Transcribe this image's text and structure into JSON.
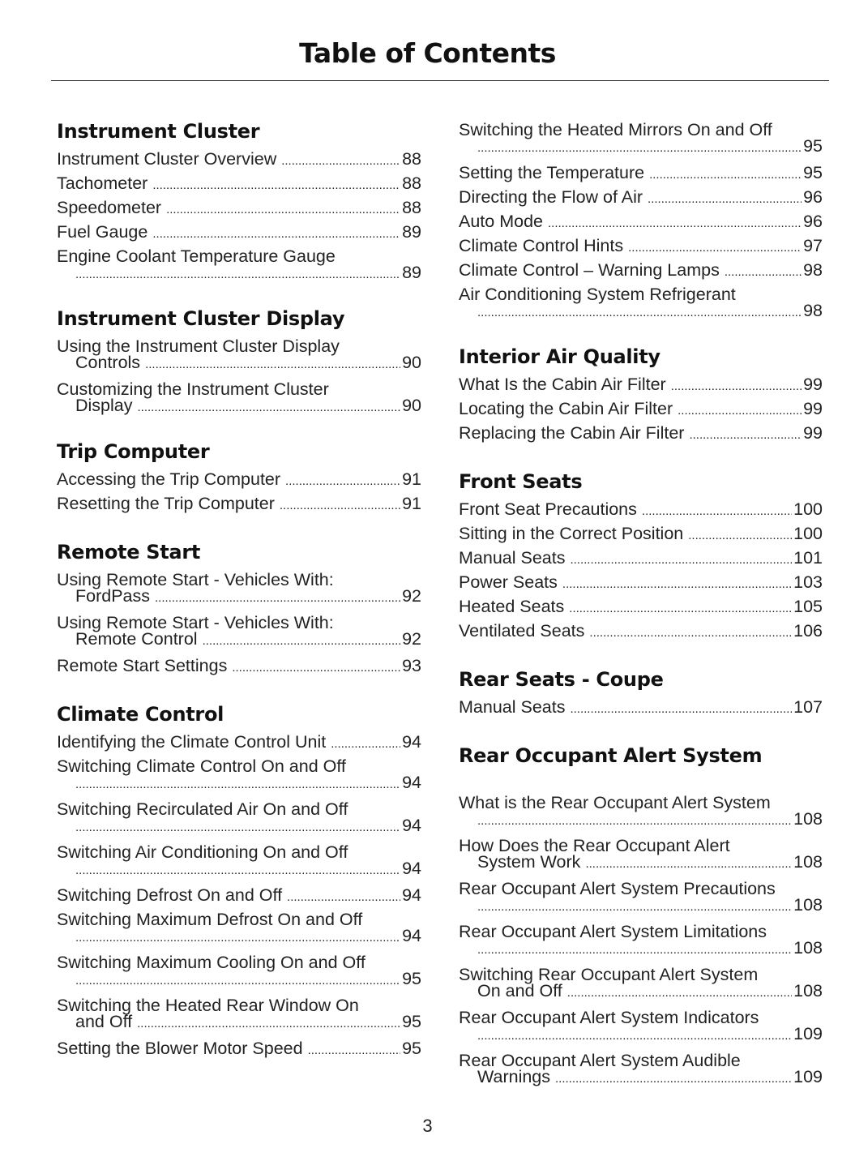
{
  "header": {
    "title": "Table of Contents"
  },
  "footer": {
    "page_number": "3"
  },
  "columns": [
    [
      {
        "heading": "Instrument Cluster",
        "entries": [
          {
            "text": "Instrument Cluster Overview",
            "page": "88"
          },
          {
            "text": "Tachometer",
            "page": "88"
          },
          {
            "text": "Speedometer",
            "page": "88"
          },
          {
            "text": "Fuel Gauge",
            "page": "89"
          },
          {
            "text": "Engine Coolant Temperature Gauge",
            "cont": "",
            "page": "89"
          }
        ]
      },
      {
        "heading": "Instrument Cluster Display",
        "entries": [
          {
            "text": "Using the Instrument Cluster Display",
            "cont": "Controls",
            "page": "90"
          },
          {
            "text": "Customizing the Instrument Cluster",
            "cont": "Display",
            "page": "90"
          }
        ]
      },
      {
        "heading": "Trip Computer",
        "entries": [
          {
            "text": "Accessing the Trip Computer",
            "page": "91"
          },
          {
            "text": "Resetting the Trip Computer",
            "page": "91"
          }
        ]
      },
      {
        "heading": "Remote Start",
        "entries": [
          {
            "text": "Using Remote Start - Vehicles With:",
            "cont": "FordPass",
            "page": "92"
          },
          {
            "text": "Using Remote Start - Vehicles With:",
            "cont": "Remote Control",
            "page": "92"
          },
          {
            "text": "Remote Start Settings",
            "page": "93"
          }
        ]
      },
      {
        "heading": "Climate Control",
        "entries": [
          {
            "text": "Identifying the Climate Control Unit",
            "page": "94"
          },
          {
            "text": "Switching Climate Control On and Off",
            "cont": "",
            "page": "94"
          },
          {
            "text": "Switching Recirculated Air On and Off",
            "cont": "",
            "page": "94"
          },
          {
            "text": "Switching Air Conditioning On and Off",
            "cont": "",
            "page": "94"
          },
          {
            "text": "Switching Defrost On and Off",
            "page": "94"
          },
          {
            "text": "Switching Maximum Defrost On and Off",
            "cont": "",
            "page": "94"
          },
          {
            "text": "Switching Maximum Cooling On and Off",
            "cont": "",
            "page": "95"
          },
          {
            "text": "Switching the Heated Rear Window On",
            "cont": "and Off",
            "page": "95"
          },
          {
            "text": "Setting the Blower Motor Speed",
            "page": "95"
          }
        ]
      }
    ],
    [
      {
        "heading": "",
        "entries": [
          {
            "text": "Switching the Heated Mirrors On and Off",
            "cont": "",
            "page": "95"
          },
          {
            "text": "Setting the Temperature",
            "page": "95"
          },
          {
            "text": "Directing the Flow of Air",
            "page": "96"
          },
          {
            "text": "Auto Mode",
            "page": "96"
          },
          {
            "text": "Climate Control Hints",
            "page": "97"
          },
          {
            "text": "Climate Control – Warning Lamps",
            "page": "98"
          },
          {
            "text": "Air Conditioning System Refrigerant",
            "cont": "",
            "page": "98"
          }
        ]
      },
      {
        "heading": "Interior Air Quality",
        "entries": [
          {
            "text": "What Is the Cabin Air Filter",
            "page": "99"
          },
          {
            "text": "Locating the Cabin Air Filter",
            "page": "99"
          },
          {
            "text": "Replacing the Cabin Air Filter",
            "page": "99"
          }
        ]
      },
      {
        "heading": "Front Seats",
        "entries": [
          {
            "text": "Front Seat Precautions",
            "page": "100"
          },
          {
            "text": "Sitting in the Correct Position",
            "page": "100"
          },
          {
            "text": "Manual Seats",
            "page": "101"
          },
          {
            "text": "Power Seats",
            "page": "103"
          },
          {
            "text": "Heated Seats",
            "page": "105"
          },
          {
            "text": "Ventilated Seats",
            "page": "106"
          }
        ]
      },
      {
        "heading": "Rear Seats - Coupe",
        "entries": [
          {
            "text": "Manual Seats",
            "page": "107"
          }
        ]
      },
      {
        "heading": "Rear Occupant Alert System",
        "big_gap": true,
        "entries": [
          {
            "text": "What is the Rear Occupant Alert System",
            "cont": "",
            "page": "108"
          },
          {
            "text": "How Does the Rear Occupant Alert",
            "cont": "System Work",
            "page": "108"
          },
          {
            "text": "Rear Occupant Alert System Precautions",
            "cont": "",
            "page": "108"
          },
          {
            "text": "Rear Occupant Alert System Limitations",
            "cont": "",
            "page": "108"
          },
          {
            "text": "Switching Rear Occupant Alert System",
            "cont": "On and Off",
            "page": "108"
          },
          {
            "text": "Rear Occupant Alert System Indicators",
            "cont": "",
            "page": "109"
          },
          {
            "text": "Rear Occupant Alert System Audible",
            "cont": "Warnings",
            "page": "109"
          }
        ]
      }
    ]
  ]
}
